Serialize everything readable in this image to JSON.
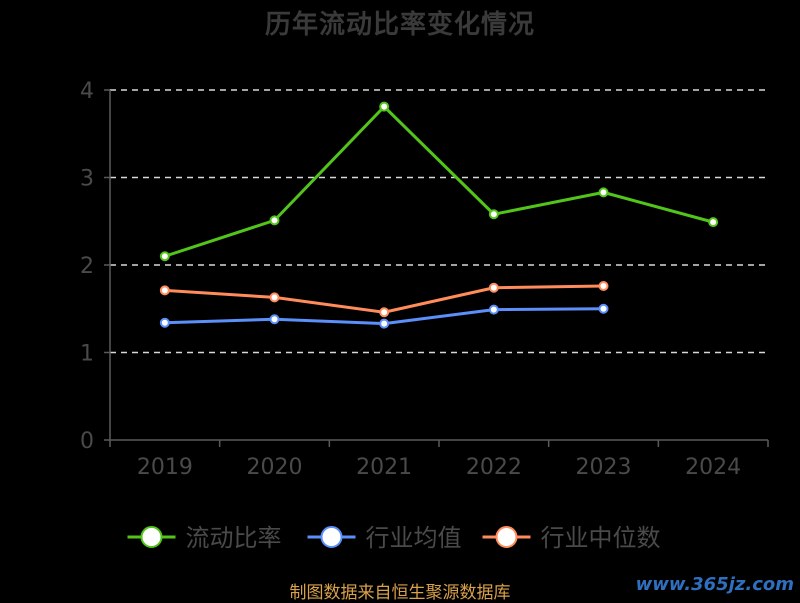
{
  "chart_data": {
    "type": "line",
    "title": "历年流动比率变化情况",
    "categories": [
      "2019",
      "2020",
      "2021",
      "2022",
      "2023",
      "2024"
    ],
    "ylim": [
      0,
      4
    ],
    "yticks": [
      0,
      1,
      2,
      3,
      4
    ],
    "grid": true,
    "legend_position": "bottom",
    "series": [
      {
        "name": "流动比率",
        "color": "#52c41a",
        "values": [
          2.1,
          2.51,
          3.81,
          2.58,
          2.83,
          2.49
        ]
      },
      {
        "name": "行业均值",
        "color": "#5b8ff9",
        "values": [
          1.34,
          1.38,
          1.33,
          1.49,
          1.5,
          null
        ]
      },
      {
        "name": "行业中位数",
        "color": "#ff8c5a",
        "values": [
          1.71,
          1.63,
          1.46,
          1.74,
          1.76,
          null
        ]
      }
    ]
  },
  "footer": {
    "source": "制图数据来自恒生聚源数据库",
    "watermark": "www.365jz.com"
  }
}
